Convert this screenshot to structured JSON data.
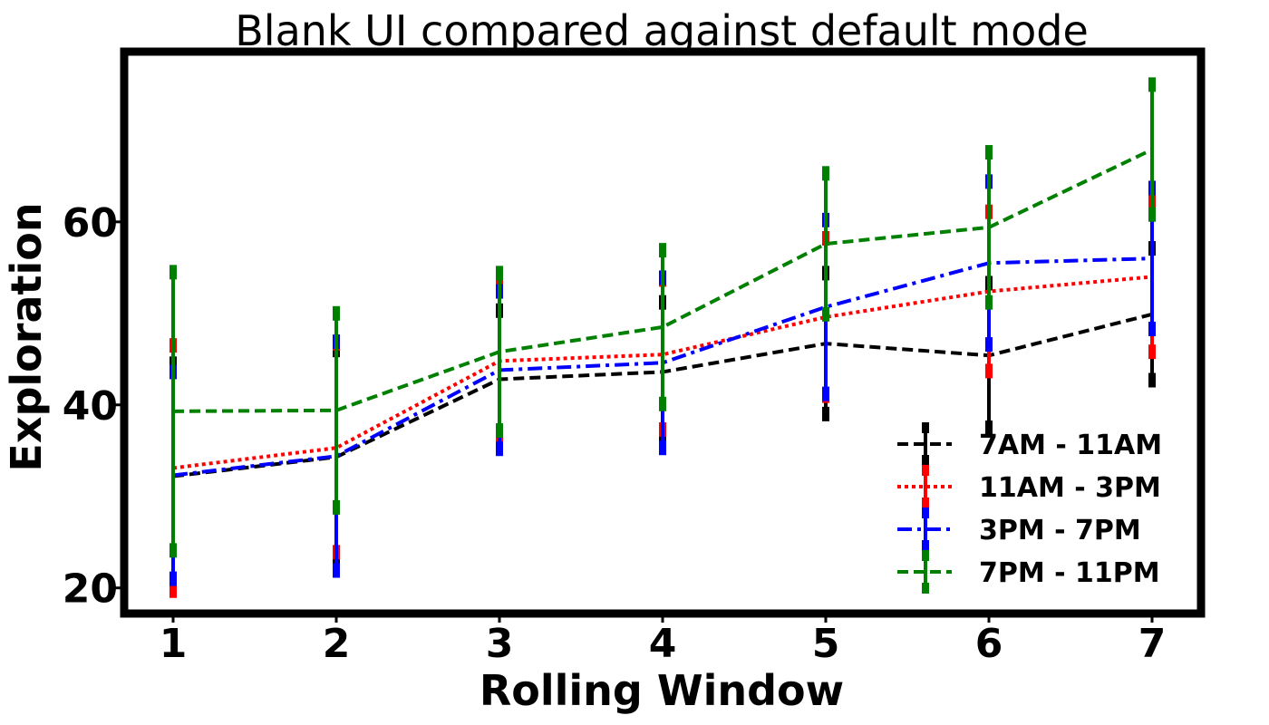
{
  "chart_data": {
    "type": "line",
    "title": "Blank UI compared against default mode",
    "xlabel": "Rolling Window",
    "ylabel": "Exploration",
    "x": [
      1,
      2,
      3,
      4,
      5,
      6,
      7
    ],
    "xlim": [
      0.7,
      7.3
    ],
    "ylim": [
      17.2,
      78.6
    ],
    "yticks": [
      20,
      40,
      60
    ],
    "grid": false,
    "legend_position": "lower-right",
    "series": [
      {
        "name": "7AM - 11AM",
        "color": "#000000",
        "dash": "dashed",
        "values": [
          32.2,
          34.3,
          42.8,
          43.6,
          46.7,
          45.4,
          49.9
        ],
        "error": [
          12.3,
          11.7,
          7.5,
          7.6,
          7.7,
          7.9,
          7.2
        ]
      },
      {
        "name": "11AM - 3PM",
        "color": "#ff0000",
        "dash": "dotted",
        "values": [
          33.1,
          35.3,
          44.8,
          45.5,
          49.6,
          52.4,
          54.0
        ],
        "error": [
          13.4,
          11.4,
          8.3,
          8.2,
          8.6,
          8.7,
          8.2
        ]
      },
      {
        "name": "3PM - 7PM",
        "color": "#0000ff",
        "dash": "dashdot",
        "values": [
          32.3,
          34.4,
          43.8,
          44.6,
          50.7,
          55.5,
          56.0
        ],
        "error": [
          11.3,
          12.5,
          8.6,
          9.3,
          9.5,
          8.9,
          7.7
        ]
      },
      {
        "name": "7PM - 11PM",
        "color": "#008000",
        "dash": "dashed",
        "values": [
          39.3,
          39.4,
          45.8,
          48.5,
          57.6,
          59.4,
          67.9
        ],
        "error": [
          15.2,
          10.6,
          8.6,
          8.4,
          7.7,
          8.2,
          7.1
        ]
      }
    ]
  }
}
